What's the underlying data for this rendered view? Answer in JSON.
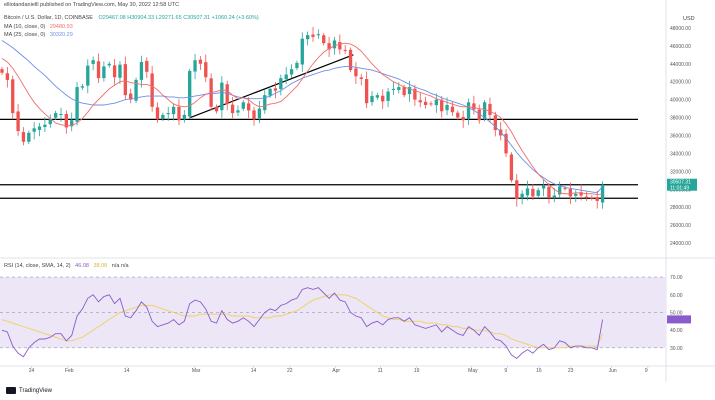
{
  "header": {
    "attribution": "elliotandanielll published on TradingView.com, May 30, 2022 12:58 UTC",
    "symbol_line": "Bitcoin / U.S. Dollar, 1D, COINBASE",
    "ohlc": "O29467.08 H30904.33 L29271.65 C30507.31 +1060.24 (+3.60%)",
    "ma10_label": "MA (10, close, 0)",
    "ma10_value": "29480.93",
    "ma25_label": "MA (25, close, 0)",
    "ma25_value": "30320.29",
    "currency": "USD"
  },
  "colors": {
    "up": "#26a69a",
    "down": "#ef5350",
    "ma10": "#f06e6e",
    "ma25": "#6a8fe6",
    "rsi": "#8a5cc9",
    "rsi_sma": "#f0d060",
    "rsi_band": "#ece6f7",
    "black_line": "#000000"
  },
  "price_badge": {
    "price": "30507.31",
    "countdown": "11:01:49"
  },
  "rsi_header": {
    "label": "RSI (14, close, SMA, 14, 2)",
    "value": "46.08",
    "sma_value": "38.08",
    "extra": "n/a n/a"
  },
  "logo": {
    "text": "TradingView"
  },
  "chart_data": [
    {
      "type": "candlestick",
      "title": "Bitcoin / U.S. Dollar, 1D, COINBASE",
      "ylim": [
        23000,
        50000
      ],
      "yticks": [
        "48000.00",
        "46000.00",
        "44000.00",
        "42000.00",
        "40000.00",
        "38000.00",
        "36000.00",
        "34000.00",
        "32000.00",
        "30000.00",
        "28000.00",
        "26000.00",
        "24000.00"
      ],
      "xticks": [
        "24",
        "Feb",
        "14",
        "Mar",
        "14",
        "22",
        "Apr",
        "11",
        "19",
        "May",
        "9",
        "16",
        "23",
        "Jun",
        "9"
      ],
      "x_range": [
        "2022-01-17",
        "2022-06-13"
      ],
      "candles_close": [
        43000,
        42200,
        38500,
        36500,
        35300,
        36300,
        36800,
        37000,
        37200,
        37800,
        38500,
        38400,
        36900,
        37700,
        41400,
        41500,
        43800,
        44400,
        42400,
        43700,
        44000,
        42500,
        43900,
        40500,
        40000,
        42200,
        44200,
        43100,
        39200,
        37800,
        38300,
        38500,
        39200,
        37700,
        38300,
        43200,
        44400,
        44000,
        42500,
        39200,
        38700,
        41900,
        39500,
        38500,
        38800,
        39700,
        38800,
        37800,
        39000,
        40500,
        41200,
        41000,
        42400,
        42800,
        43400,
        44100,
        46800,
        47200,
        47000,
        47300,
        46300,
        45600,
        46600,
        45600,
        45500,
        43300,
        42600,
        42300,
        39600,
        40400,
        40500,
        39800,
        40900,
        41200,
        41400,
        40500,
        41400,
        40000,
        39700,
        39400,
        39500,
        40000,
        38700,
        39400,
        38600,
        38000,
        37700,
        39700,
        38900,
        37700,
        39700,
        38300,
        36600,
        36000,
        34000,
        31000,
        28900,
        29500,
        30100,
        29200,
        29900,
        30400,
        29100,
        29300,
        30300,
        30100,
        29200,
        29500,
        29300,
        29100,
        29000,
        28700,
        30500
      ],
      "ma10": [
        44600,
        44200,
        43500,
        42600,
        41600,
        40600,
        39700,
        39000,
        38400,
        37900,
        37400,
        37200,
        37100,
        37100,
        37400,
        37900,
        38600,
        39400,
        40000,
        40600,
        41200,
        41600,
        42000,
        42100,
        41900,
        41800,
        41700,
        41700,
        41500,
        41100,
        40500,
        40000,
        39500,
        39300,
        39200,
        39300,
        39700,
        40200,
        40600,
        40800,
        40900,
        41100,
        41000,
        40500,
        40100,
        40200,
        40000,
        39500,
        39200,
        39300,
        39500,
        39600,
        39800,
        40300,
        40900,
        41500,
        42300,
        43200,
        44000,
        44700,
        45300,
        45700,
        46000,
        46200,
        46300,
        46200,
        45900,
        45400,
        44700,
        44000,
        43400,
        42800,
        42400,
        42000,
        41700,
        41400,
        41200,
        41000,
        40800,
        40600,
        40400,
        40100,
        39900,
        39700,
        39500,
        39300,
        39200,
        39200,
        39100,
        39000,
        38900,
        38700,
        38400,
        38000,
        37300,
        36400,
        35300,
        34300,
        33400,
        32500,
        31700,
        31100,
        30500,
        30000,
        29600,
        29500,
        29500,
        29600,
        29600,
        29500,
        29500,
        29400,
        29480
      ],
      "ma25": [
        46600,
        46200,
        45800,
        45300,
        44800,
        44300,
        43700,
        43200,
        42700,
        42100,
        41500,
        41000,
        40500,
        40100,
        39800,
        39600,
        39500,
        39400,
        39400,
        39400,
        39500,
        39600,
        39800,
        40000,
        40100,
        40200,
        40300,
        40400,
        40400,
        40400,
        40400,
        40300,
        40300,
        40200,
        40200,
        40300,
        40400,
        40500,
        40600,
        40700,
        40700,
        40800,
        40700,
        40500,
        40300,
        40200,
        40100,
        40100,
        40100,
        40200,
        40400,
        40700,
        41000,
        41400,
        41800,
        42100,
        42400,
        42600,
        42800,
        43000,
        43200,
        43300,
        43500,
        43600,
        43700,
        43700,
        43600,
        43500,
        43400,
        43300,
        43100,
        42900,
        42700,
        42500,
        42300,
        42000,
        41700,
        41400,
        41200,
        41000,
        40700,
        40500,
        40200,
        40000,
        39800,
        39600,
        39400,
        39100,
        38800,
        38400,
        38000,
        37500,
        37000,
        36400,
        35700,
        34900,
        34100,
        33400,
        32800,
        32200,
        31700,
        31300,
        30900,
        30600,
        30400,
        30200,
        30100,
        30000,
        29900,
        29800,
        29700,
        29600,
        30320
      ],
      "horizontal_levels": [
        37800,
        30500,
        29000
      ],
      "trendlines": [
        {
          "from": [
            "2022-02-28",
            38000
          ],
          "to": [
            "2022-04-05",
            45000
          ]
        }
      ]
    },
    {
      "type": "line",
      "title": "RSI (14, close, SMA, 14, 2)",
      "ylim": [
        22,
        74
      ],
      "yticks": [
        "70.00",
        "60.00",
        "50.00",
        "40.00",
        "30.00"
      ],
      "band": [
        30,
        70
      ],
      "midline": 50,
      "series": [
        {
          "name": "RSI",
          "values": [
            40,
            39,
            31,
            27,
            25,
            30,
            33,
            35,
            35,
            36,
            38,
            38,
            34,
            37,
            48,
            52,
            58,
            60,
            56,
            59,
            60,
            55,
            58,
            48,
            47,
            51,
            56,
            53,
            45,
            42,
            43,
            44,
            46,
            43,
            45,
            55,
            57,
            56,
            52,
            45,
            44,
            51,
            46,
            44,
            45,
            47,
            45,
            42,
            46,
            50,
            52,
            51,
            54,
            55,
            57,
            58,
            63,
            64,
            63,
            64,
            61,
            58,
            61,
            57,
            56,
            50,
            48,
            47,
            42,
            44,
            45,
            43,
            46,
            47,
            47,
            45,
            47,
            43,
            42,
            41,
            42,
            43,
            39,
            42,
            40,
            38,
            37,
            42,
            40,
            37,
            42,
            39,
            35,
            34,
            31,
            26,
            24,
            27,
            29,
            27,
            30,
            32,
            29,
            30,
            34,
            33,
            30,
            31,
            31,
            30,
            30,
            29,
            46
          ]
        },
        {
          "name": "SMA",
          "values": [
            46,
            45,
            44,
            43,
            42,
            41,
            40,
            39,
            38,
            37,
            36,
            35,
            34,
            34,
            35,
            36,
            38,
            40,
            42,
            44,
            46,
            48,
            50,
            51,
            52,
            53,
            54,
            54,
            54,
            53,
            52,
            51,
            50,
            49,
            48,
            48,
            48,
            49,
            49,
            49,
            49,
            49,
            49,
            48,
            48,
            48,
            48,
            47,
            47,
            47,
            47,
            48,
            48,
            49,
            50,
            51,
            53,
            55,
            57,
            58,
            59,
            60,
            60,
            60,
            60,
            59,
            58,
            56,
            54,
            52,
            50,
            48,
            47,
            46,
            46,
            45,
            45,
            45,
            45,
            44,
            44,
            44,
            43,
            43,
            42,
            42,
            41,
            41,
            40,
            40,
            40,
            39,
            38,
            38,
            37,
            35,
            34,
            33,
            32,
            31,
            30,
            30,
            30,
            30,
            30,
            30,
            31,
            31,
            31,
            31,
            31,
            31,
            38
          ]
        }
      ]
    }
  ]
}
